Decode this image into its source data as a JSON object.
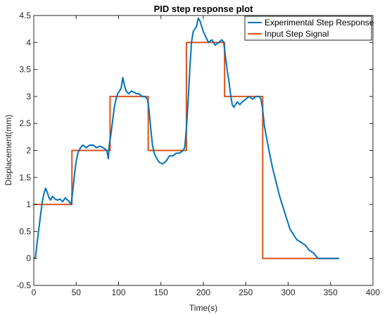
{
  "chart_data": {
    "type": "line",
    "title": "PID step response plot",
    "xlabel": "Time(s)",
    "ylabel": "Displacement(mm)",
    "xlim": [
      0,
      400
    ],
    "ylim": [
      -0.5,
      4.5
    ],
    "xticks": [
      0,
      50,
      100,
      150,
      200,
      250,
      300,
      350,
      400
    ],
    "yticks": [
      -0.5,
      0,
      0.5,
      1,
      1.5,
      2,
      2.5,
      3,
      3.5,
      4,
      4.5
    ],
    "xtick_labels": [
      "0",
      "50",
      "100",
      "150",
      "200",
      "250",
      "300",
      "350",
      "400"
    ],
    "ytick_labels": [
      "-0.5",
      "0",
      "0.5",
      "1",
      "1.5",
      "2",
      "2.5",
      "3",
      "3.5",
      "4",
      "4.5"
    ],
    "grid": false,
    "legend_position": "top-right",
    "series": [
      {
        "name": "Experimental Step Response",
        "color": "#0072BD",
        "x": [
          0,
          2,
          4,
          6,
          8,
          10,
          12,
          14,
          16,
          18,
          20,
          22,
          25,
          28,
          31,
          34,
          37,
          40,
          42,
          44,
          46,
          48,
          50,
          52,
          55,
          58,
          62,
          66,
          70,
          74,
          78,
          82,
          86,
          88,
          89,
          91,
          93,
          95,
          97,
          99,
          101,
          103,
          105,
          107,
          109,
          112,
          115,
          118,
          121,
          124,
          128,
          131,
          134,
          136,
          138,
          140,
          142,
          145,
          148,
          152,
          156,
          160,
          164,
          168,
          172,
          176,
          178,
          180,
          182,
          184,
          186,
          188,
          190,
          192,
          194,
          196,
          198,
          200,
          203,
          206,
          210,
          214,
          218,
          222,
          224,
          226,
          228,
          230,
          232,
          234,
          236,
          238,
          240,
          243,
          246,
          250,
          254,
          258,
          262,
          266,
          268,
          270,
          272,
          275,
          278,
          282,
          286,
          290,
          294,
          298,
          302,
          306,
          310,
          315,
          320,
          325,
          330,
          335,
          338,
          345,
          352,
          360
        ],
        "values": [
          0.0,
          0.02,
          0.3,
          0.55,
          0.8,
          1.05,
          1.2,
          1.3,
          1.22,
          1.12,
          1.08,
          1.15,
          1.1,
          1.08,
          1.1,
          1.05,
          1.12,
          1.08,
          1.05,
          1.0,
          1.25,
          1.55,
          1.8,
          1.95,
          2.05,
          2.1,
          2.05,
          2.1,
          2.1,
          2.05,
          2.08,
          2.05,
          2.0,
          1.85,
          2.1,
          2.3,
          2.55,
          2.8,
          2.95,
          3.05,
          3.1,
          3.15,
          3.35,
          3.2,
          3.1,
          3.05,
          3.1,
          3.08,
          3.05,
          3.05,
          3.0,
          3.0,
          2.95,
          2.75,
          2.4,
          2.1,
          1.95,
          1.85,
          1.78,
          1.75,
          1.8,
          1.9,
          1.9,
          1.95,
          1.95,
          2.0,
          2.05,
          2.4,
          2.9,
          3.5,
          4.0,
          4.2,
          4.25,
          4.3,
          4.45,
          4.4,
          4.3,
          4.2,
          4.1,
          4.0,
          4.05,
          3.95,
          4.0,
          4.05,
          4.0,
          3.75,
          3.5,
          3.3,
          3.05,
          2.85,
          2.8,
          2.85,
          2.9,
          2.85,
          2.9,
          2.95,
          3.0,
          2.95,
          3.0,
          3.0,
          2.95,
          2.75,
          2.45,
          2.2,
          1.95,
          1.65,
          1.4,
          1.15,
          0.95,
          0.75,
          0.55,
          0.45,
          0.35,
          0.3,
          0.25,
          0.15,
          0.1,
          0.0,
          0.0,
          0.0,
          0.0,
          0.0
        ]
      },
      {
        "name": "Input Step Signal",
        "color": "#D95319",
        "x": [
          0,
          45,
          45,
          90,
          90,
          135,
          135,
          180,
          180,
          225,
          225,
          270,
          270,
          360
        ],
        "values": [
          1,
          1,
          2,
          2,
          3,
          3,
          2,
          2,
          4,
          4,
          3,
          3,
          0,
          0
        ]
      }
    ]
  }
}
